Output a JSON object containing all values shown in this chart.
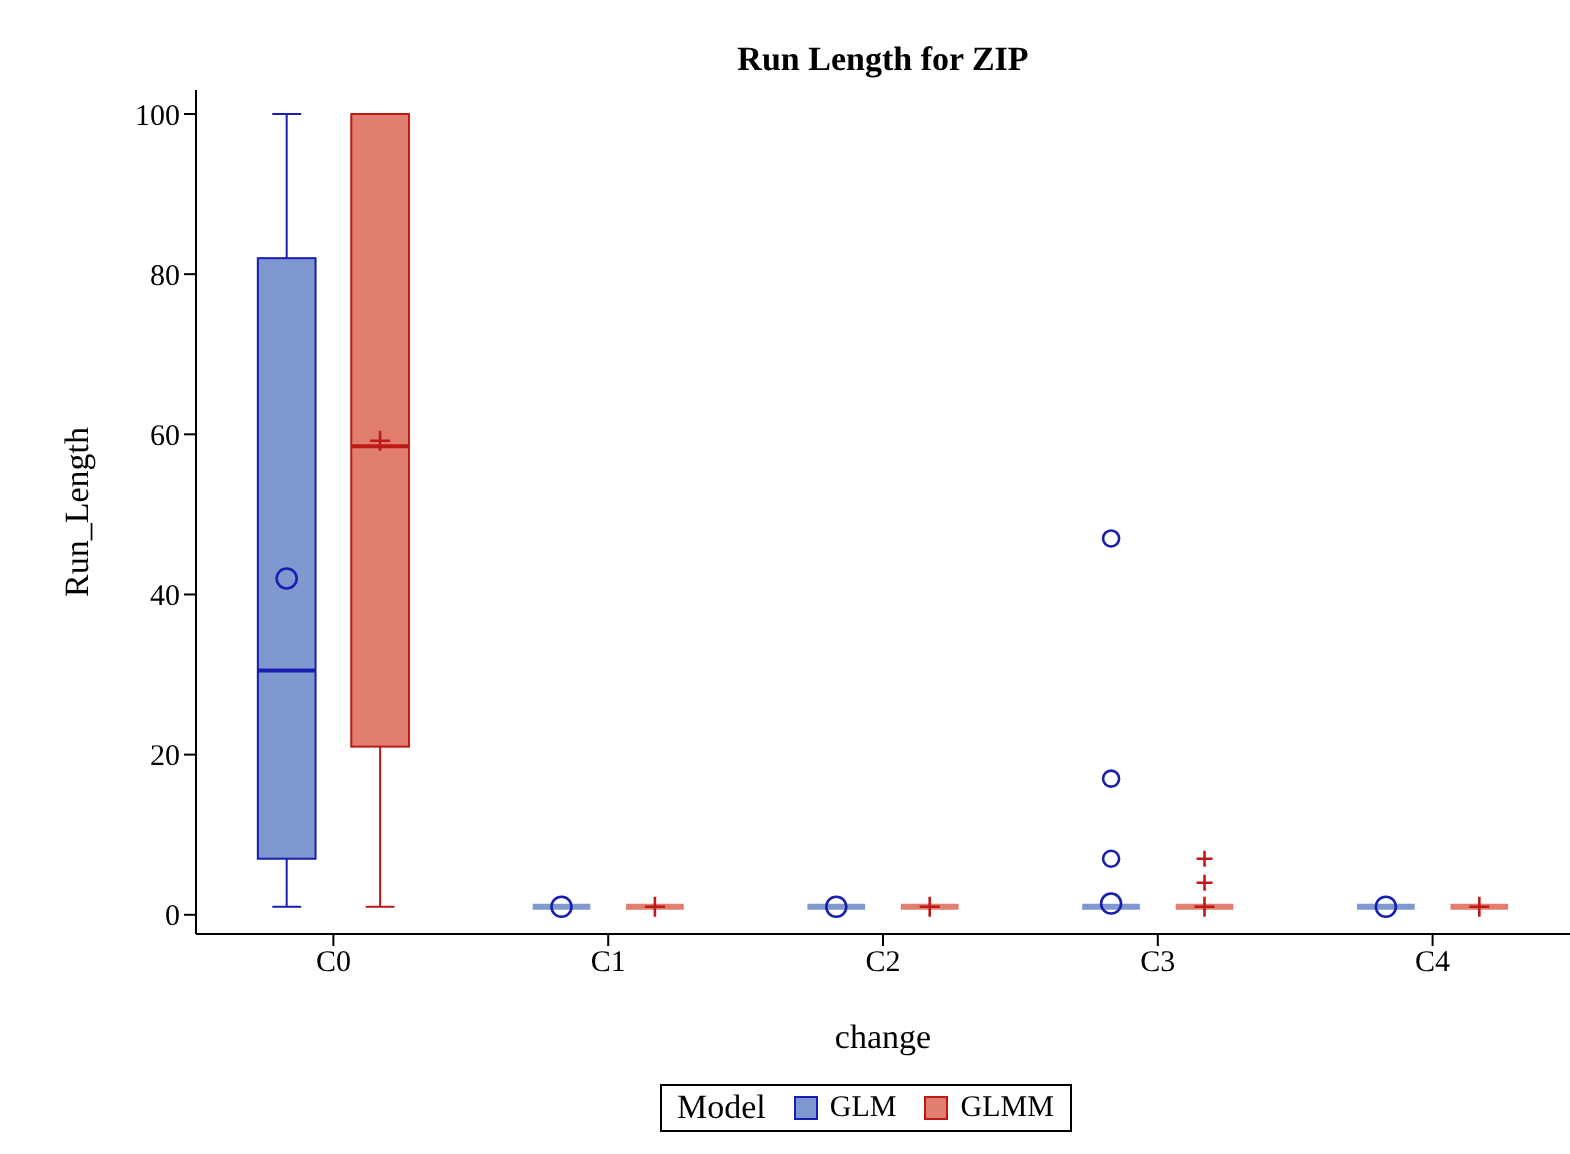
{
  "chart_data": {
    "type": "box",
    "title": "Run Length for ZIP",
    "xlabel": "change",
    "ylabel": "Run_Length",
    "legend_title": "Model",
    "legend": "bottom",
    "categories": [
      "C0",
      "C1",
      "C2",
      "C3",
      "C4"
    ],
    "ylim": [
      -2.4,
      103
    ],
    "yticks": [
      0,
      20,
      40,
      60,
      80,
      100
    ],
    "series": [
      {
        "name": "GLM",
        "color": "#7f98cf",
        "marker": "circle",
        "boxes": [
          {
            "low": 1,
            "q1": 7,
            "median": 30.5,
            "q3": 82,
            "high": 100,
            "mean": 42
          },
          {
            "low": 1,
            "q1": 1,
            "median": 1,
            "q3": 1,
            "high": 1,
            "mean": 1
          },
          {
            "low": 1,
            "q1": 1,
            "median": 1,
            "q3": 1,
            "high": 1,
            "mean": 1
          },
          {
            "low": 1,
            "q1": 1,
            "median": 1,
            "q3": 1,
            "high": 1,
            "mean": 1.4,
            "outliers": [
              47,
              17,
              7
            ]
          },
          {
            "low": 1,
            "q1": 1,
            "median": 1,
            "q3": 1,
            "high": 1,
            "mean": 1
          }
        ]
      },
      {
        "name": "GLMM",
        "color": "#e07f6f",
        "marker": "cross",
        "boxes": [
          {
            "low": 1,
            "q1": 21,
            "median": 58.5,
            "q3": 100,
            "high": 100,
            "mean": 59.2
          },
          {
            "low": 1,
            "q1": 1,
            "median": 1,
            "q3": 1,
            "high": 1,
            "mean": 1
          },
          {
            "low": 1,
            "q1": 1,
            "median": 1,
            "q3": 1,
            "high": 1,
            "mean": 1
          },
          {
            "low": 1,
            "q1": 1,
            "median": 1,
            "q3": 1,
            "high": 1,
            "mean": 1,
            "outliers": [
              7,
              4
            ]
          },
          {
            "low": 1,
            "q1": 1,
            "median": 1,
            "q3": 1,
            "high": 1,
            "mean": 1
          }
        ]
      }
    ]
  }
}
